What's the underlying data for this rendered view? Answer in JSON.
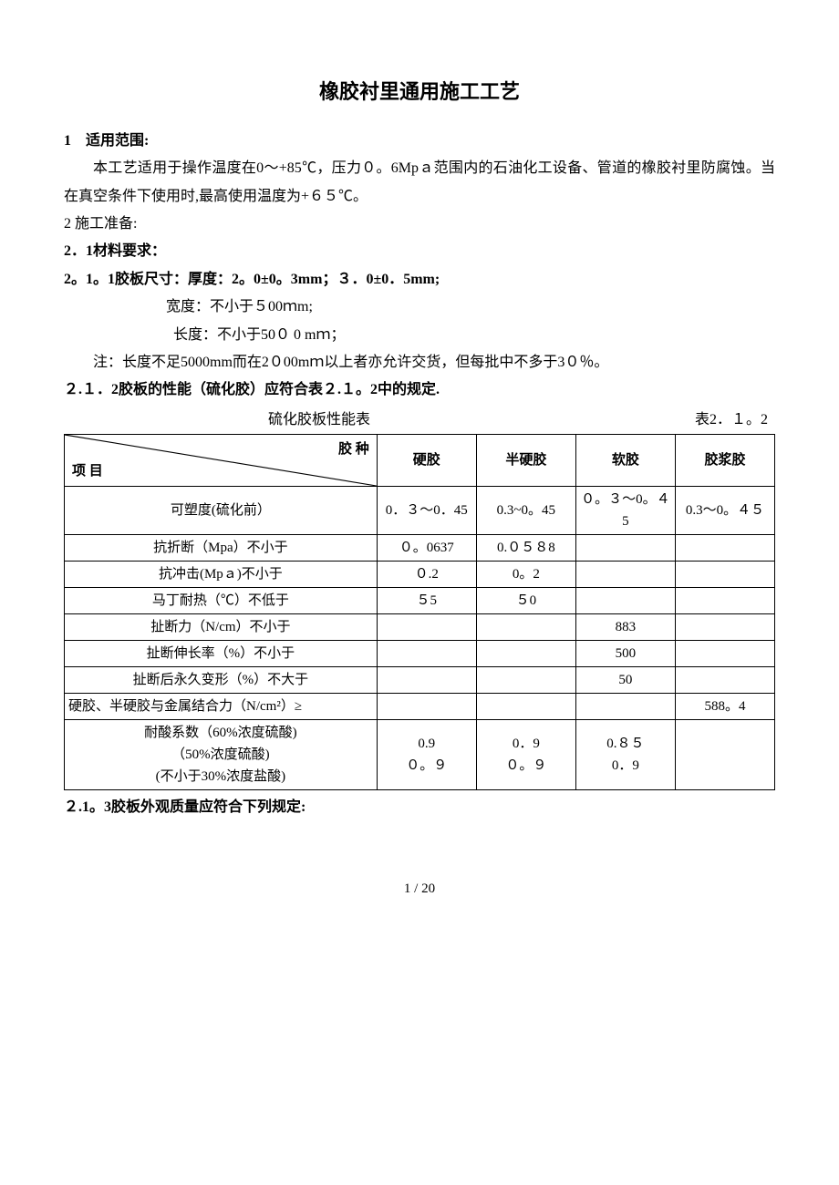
{
  "title": "橡胶衬里通用施工工艺",
  "sec1_hdr": "1　适用范围:",
  "sec1_body": "本工艺适用于操作温度在0～+85℃，压力０。6Mpａ范围内的石油化工设备、管道的橡胶衬里防腐蚀。当在真空条件下使用时,最高使用温度为+６５℃。",
  "sec2_hdr": "2 施工准备:",
  "sec2_1_hdr": "2．1材料要求：",
  "sec2_1_1": "2。1。1胶板尺寸：厚度：2。0±0。3mm；３．0±0．5mm;",
  "width_line": "宽度：不小于５00ｍm;",
  "length_line": "长度：不小于50０ 0 mｍ；",
  "note_line": "注：长度不足5000mm而在2０00mｍ以上者亦允许交货，但每批中不多于3０％。",
  "sec2_1_2": "２.１．2胶板的性能（硫化胶）应符合表２.１。2中的规定.",
  "table_caption": "硫化胶板性能表",
  "table_num": "表2．１。2",
  "table": {
    "header_diag_top": "胶 种",
    "header_diag_bottom": "项 目",
    "cols": [
      "硬胶",
      "半硬胶",
      "软胶",
      "胶浆胶"
    ],
    "rows": [
      {
        "label": "可塑度(硫化前）",
        "cells": [
          "0．３～0．45",
          "0.3~0。45",
          "０。３～0。４5",
          "0.3～0。４５"
        ]
      },
      {
        "label": "抗折断（Mpa）不小于",
        "cells": [
          "０。0637",
          "0.０５８8",
          "",
          ""
        ]
      },
      {
        "label": "抗冲击(Mpａ)不小于",
        "cells": [
          "０.2",
          "0。2",
          "",
          ""
        ]
      },
      {
        "label": "马丁耐热（℃）不低于",
        "cells": [
          "５5",
          "５0",
          "",
          ""
        ]
      },
      {
        "label": "扯断力（N/cm）不小于",
        "cells": [
          "",
          "",
          "883",
          ""
        ]
      },
      {
        "label": "扯断伸长率（%）不小于",
        "cells": [
          "",
          "",
          "500",
          ""
        ]
      },
      {
        "label": "扯断后永久变形（%）不大于",
        "cells": [
          "",
          "",
          "50",
          ""
        ]
      },
      {
        "label": "硬胶、半硬胶与金属结合力（N/cm²）≥",
        "cells": [
          "",
          "",
          "",
          "588。4"
        ],
        "align": "left"
      },
      {
        "label": "耐酸系数（60%浓度硫酸)\n（50%浓度硫酸)\n(不小于30%浓度盐酸)",
        "cells": [
          "0.9\n０。９",
          "0．9\n０。９",
          "0.８５\n0．9",
          ""
        ]
      }
    ]
  },
  "sec2_1_3": "２.1。3胶板外观质量应符合下列规定:",
  "page_num": "1 / 20",
  "colors": {
    "text": "#000000",
    "bg": "#ffffff",
    "border": "#000000"
  }
}
